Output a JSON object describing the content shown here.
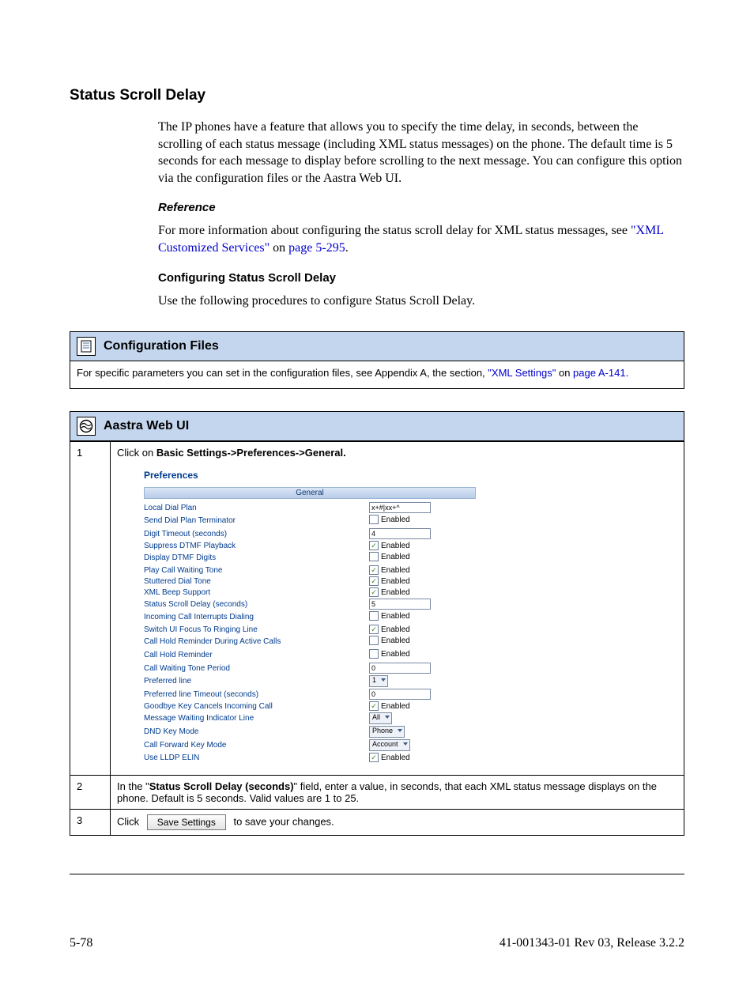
{
  "heading": "Status Scroll Delay",
  "intro": "The IP phones have a feature that allows you to specify the time delay, in seconds, between the scrolling of each status message (including XML status messages) on the phone. The default time is 5 seconds for each message to display before scrolling to the next message. You can configure this option via the configuration files or the Aastra Web UI.",
  "reference_head": "Reference",
  "reference_pre": "For more information about configuring the status scroll delay for XML status messages, see ",
  "reference_link1": "\"XML Customized Services\"",
  "reference_mid": " on ",
  "reference_link2": "page 5-295",
  "reference_post": ".",
  "config_head": "Configuring Status Scroll Delay",
  "config_para": "Use the following procedures to configure Status Scroll Delay.",
  "box1_title": "Configuration Files",
  "box1_body_pre": "For specific parameters you can set in the configuration files, see Appendix A, the section, ",
  "box1_link1": "\"XML Settings\"",
  "box1_body_mid": " on ",
  "box1_link2": "page A-141",
  "box1_body_post": ".",
  "box2_title": "Aastra Web UI",
  "step1_num": "1",
  "step1_pre": "Click on ",
  "step1_bold": "Basic Settings->Preferences->General.",
  "prefs_title": "Preferences",
  "general_label": "General",
  "prefs": {
    "rows": [
      {
        "label": "Local Dial Plan",
        "type": "input",
        "value": "x+#|xx+^"
      },
      {
        "label": "Send Dial Plan Terminator",
        "type": "check",
        "checked": false
      },
      {
        "label": "Digit Timeout (seconds)",
        "type": "input",
        "value": "4"
      },
      {
        "label": "Suppress DTMF Playback",
        "type": "check",
        "checked": true
      },
      {
        "label": "Display DTMF Digits",
        "type": "check",
        "checked": false
      },
      {
        "label": "Play Call Waiting Tone",
        "type": "check",
        "checked": true
      },
      {
        "label": "Stuttered Dial Tone",
        "type": "check",
        "checked": true
      },
      {
        "label": "XML Beep Support",
        "type": "check",
        "checked": true
      },
      {
        "label": "Status Scroll Delay (seconds)",
        "type": "input",
        "value": "5"
      },
      {
        "label": "Incoming Call Interrupts Dialing",
        "type": "check",
        "checked": false
      },
      {
        "label": "Switch UI Focus To Ringing Line",
        "type": "check",
        "checked": true
      },
      {
        "label": "Call Hold Reminder During Active Calls",
        "type": "check",
        "checked": false
      },
      {
        "label": "Call Hold Reminder",
        "type": "check",
        "checked": false
      },
      {
        "label": "Call Waiting Tone Period",
        "type": "input",
        "value": "0"
      },
      {
        "label": "Preferred line",
        "type": "select",
        "value": "1"
      },
      {
        "label": "Preferred line Timeout (seconds)",
        "type": "input",
        "value": "0"
      },
      {
        "label": "Goodbye Key Cancels Incoming Call",
        "type": "check",
        "checked": true
      },
      {
        "label": "Message Waiting Indicator Line",
        "type": "select",
        "value": "All"
      },
      {
        "label": "DND Key Mode",
        "type": "select",
        "value": "Phone"
      },
      {
        "label": "Call Forward Key Mode",
        "type": "select",
        "value": "Account"
      },
      {
        "label": "Use LLDP ELIN",
        "type": "check",
        "checked": true
      }
    ],
    "enabled_label": "Enabled"
  },
  "step2_num": "2",
  "step2_pre": "In the \"",
  "step2_bold": "Status Scroll Delay (seconds)",
  "step2_post": "\" field, enter a value, in seconds, that each XML status message displays on the phone. Default is 5 seconds. Valid values are 1 to 25.",
  "step3_num": "3",
  "step3_pre": "Click",
  "save_label": "Save Settings",
  "step3_post": "to save your changes.",
  "footer_left": "5-78",
  "footer_right": "41-001343-01 Rev 03, Release 3.2.2"
}
